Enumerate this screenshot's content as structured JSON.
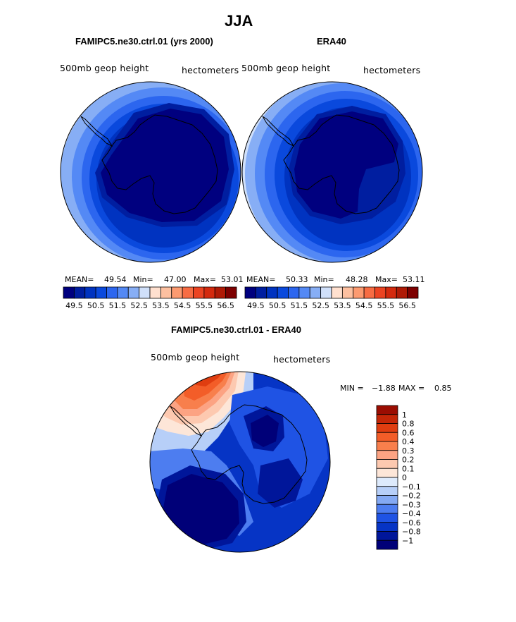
{
  "page": {
    "title": "JJA"
  },
  "panels": [
    {
      "id": "model",
      "subtitle": "FAMIPC5.ne30.ctrl.01 (yrs 2000)",
      "left_label": "500mb geop height",
      "right_label": "hectometers",
      "stats": {
        "mean_label": "MEAN=",
        "mean": "49.54",
        "min_label": "Min=",
        "min": "47.00",
        "max_label": "Max=",
        "max": "53.01"
      }
    },
    {
      "id": "obs",
      "subtitle": "ERA40",
      "left_label": "500mb geop height",
      "right_label": "hectometers",
      "stats": {
        "mean_label": "MEAN=",
        "mean": "50.33",
        "min_label": "Min=",
        "min": "48.28",
        "max_label": "Max=",
        "max": "53.11"
      }
    },
    {
      "id": "diff",
      "subtitle": "FAMIPC5.ne30.ctrl.01 - ERA40",
      "left_label": "500mb geop height",
      "right_label": "hectometers",
      "stats": {
        "min_label": "MIN =",
        "min": "−1.88",
        "max_label": "MAX =",
        "max": "0.85"
      }
    }
  ],
  "colorbars": {
    "field": {
      "colors": [
        "#00007f",
        "#001ea0",
        "#0033c0",
        "#0a49dd",
        "#2c66ef",
        "#5489f5",
        "#87aef5",
        "#d0e0fa",
        "#ffe0cf",
        "#fdc0a0",
        "#fc9a70",
        "#f76c43",
        "#ec4422",
        "#d42a0e",
        "#af1a06",
        "#7d0000"
      ],
      "tick_labels": [
        "49.5",
        "50.5",
        "51.5",
        "52.5",
        "53.5",
        "54.5",
        "55.5",
        "56.5"
      ]
    },
    "diff": {
      "colors_top_to_bottom": [
        "#9b0d02",
        "#c42607",
        "#e03d10",
        "#f35d28",
        "#f87f4c",
        "#fca383",
        "#fdc9b0",
        "#fde6d8",
        "#ddeafc",
        "#b7cff8",
        "#84a9f3",
        "#4d7df0",
        "#1f53e4",
        "#0634c5",
        "#00169a",
        "#000078"
      ],
      "tick_labels_top_to_bottom": [
        "1",
        "0.8",
        "0.6",
        "0.4",
        "0.3",
        "0.2",
        "0.1",
        "0",
        "−0.1",
        "−0.2",
        "−0.3",
        "−0.4",
        "−0.6",
        "−0.8",
        "−1"
      ]
    }
  },
  "chart_data": [
    {
      "type": "heatmap",
      "title": "FAMIPC5.ne30.ctrl.01 (yrs 2000)",
      "variable": "500mb geop height",
      "units": "hectometers",
      "projection": "south polar stereographic",
      "mean": 49.54,
      "min": 47.0,
      "max": 53.01,
      "levels": [
        49.5,
        50.0,
        50.5,
        51.0,
        51.5,
        52.0,
        52.5,
        53.0,
        53.5,
        54.0,
        54.5,
        55.0,
        55.5,
        56.0,
        56.5
      ]
    },
    {
      "type": "heatmap",
      "title": "ERA40",
      "variable": "500mb geop height",
      "units": "hectometers",
      "projection": "south polar stereographic",
      "mean": 50.33,
      "min": 48.28,
      "max": 53.11,
      "levels": [
        49.5,
        50.0,
        50.5,
        51.0,
        51.5,
        52.0,
        52.5,
        53.0,
        53.5,
        54.0,
        54.5,
        55.0,
        55.5,
        56.0,
        56.5
      ]
    },
    {
      "type": "heatmap",
      "title": "FAMIPC5.ne30.ctrl.01 - ERA40",
      "variable": "500mb geop height",
      "units": "hectometers",
      "projection": "south polar stereographic",
      "min": -1.88,
      "max": 0.85,
      "levels": [
        -1,
        -0.8,
        -0.6,
        -0.4,
        -0.3,
        -0.2,
        -0.1,
        0,
        0.1,
        0.2,
        0.3,
        0.4,
        0.6,
        0.8,
        1
      ]
    }
  ]
}
